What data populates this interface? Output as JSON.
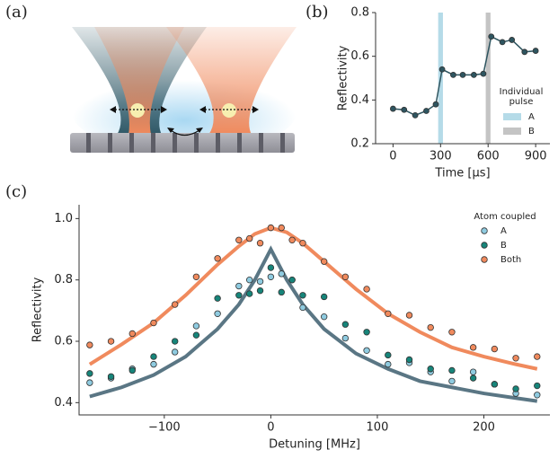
{
  "panels": [
    "(a)",
    "(b)",
    "(c)"
  ],
  "chart_data": [
    {
      "type": "line",
      "x_label": "Time [µs]",
      "y_label": "Reflectivity",
      "xlim": [
        -110,
        990
      ],
      "ylim": [
        0.2,
        0.8
      ],
      "xticks": [
        0,
        300,
        600,
        900
      ],
      "yticks": [
        0.2,
        0.4,
        0.6,
        0.8
      ],
      "x": [
        0,
        70,
        140,
        210,
        270,
        310,
        380,
        440,
        510,
        570,
        620,
        690,
        750,
        830,
        900
      ],
      "series": [
        {
          "color": "#2e5560",
          "values": [
            0.36,
            0.355,
            0.33,
            0.35,
            0.38,
            0.54,
            0.515,
            0.515,
            0.515,
            0.52,
            0.69,
            0.665,
            0.675,
            0.62,
            0.625
          ]
        }
      ],
      "bands": [
        {
          "name": "A",
          "color": "#b5dbe8",
          "x": [
            285,
            315
          ]
        },
        {
          "name": "B",
          "color": "#c4c4c4",
          "x": [
            585,
            615
          ]
        }
      ],
      "legend_title": [
        "Individual",
        "pulse"
      ],
      "legend": "lower right"
    },
    {
      "type": "scatter",
      "x_label": "Detuning [MHz]",
      "y_label": "Reflectivity",
      "xlim": [
        -180,
        262
      ],
      "ylim": [
        0.36,
        1.045
      ],
      "xticks": [
        {
          "value": -100,
          "label": "−100"
        },
        0,
        100,
        200
      ],
      "yticks": [
        0.4,
        0.6,
        0.8,
        {
          "value": 1,
          "label": "1.0"
        }
      ],
      "x": [
        -170,
        -150,
        -130,
        -110,
        -90,
        -70,
        -50,
        -30,
        -20,
        -10,
        0,
        10,
        20,
        30,
        50,
        70,
        90,
        110,
        130,
        150,
        170,
        190,
        210,
        230,
        250
      ],
      "series": [
        {
          "name": "A",
          "color": "#8fcbe0",
          "values": [
            0.465,
            0.48,
            0.51,
            0.525,
            0.565,
            0.65,
            0.69,
            0.78,
            0.8,
            0.795,
            0.81,
            0.82,
            0.8,
            0.71,
            0.68,
            0.61,
            0.57,
            0.525,
            0.53,
            0.5,
            0.47,
            0.5,
            0.46,
            0.43,
            0.425
          ]
        },
        {
          "name": "B",
          "color": "#17857a",
          "values": [
            0.495,
            0.485,
            0.505,
            0.55,
            0.6,
            0.62,
            0.74,
            0.75,
            0.755,
            0.765,
            0.84,
            0.76,
            0.8,
            0.75,
            0.745,
            0.655,
            0.63,
            0.555,
            0.54,
            0.51,
            0.505,
            0.48,
            0.46,
            0.445,
            0.455
          ]
        },
        {
          "name": "Both",
          "color": "#f08a5d",
          "values": [
            0.588,
            0.6,
            0.625,
            0.66,
            0.72,
            0.81,
            0.87,
            0.93,
            0.935,
            0.92,
            0.97,
            0.97,
            0.93,
            0.92,
            0.86,
            0.81,
            0.77,
            0.69,
            0.685,
            0.645,
            0.63,
            0.58,
            0.575,
            0.545,
            0.55
          ]
        }
      ],
      "fits": [
        {
          "color": "#f08a5d",
          "x": [
            -170,
            -140,
            -110,
            -80,
            -50,
            -30,
            -15,
            0,
            15,
            30,
            50,
            80,
            110,
            140,
            170,
            200,
            230,
            250
          ],
          "values": [
            0.525,
            0.59,
            0.66,
            0.75,
            0.85,
            0.91,
            0.95,
            0.97,
            0.955,
            0.92,
            0.86,
            0.77,
            0.69,
            0.63,
            0.58,
            0.55,
            0.525,
            0.51
          ]
        },
        {
          "color": "#5a7684",
          "x": [
            -170,
            -140,
            -110,
            -80,
            -50,
            -30,
            -15,
            0,
            15,
            30,
            50,
            80,
            110,
            140,
            170,
            200,
            230,
            250
          ],
          "values": [
            0.42,
            0.45,
            0.49,
            0.55,
            0.64,
            0.72,
            0.8,
            0.9,
            0.8,
            0.72,
            0.64,
            0.56,
            0.51,
            0.47,
            0.45,
            0.43,
            0.415,
            0.405
          ]
        }
      ],
      "legend_title": "Atom coupled",
      "legend": "upper right"
    }
  ]
}
